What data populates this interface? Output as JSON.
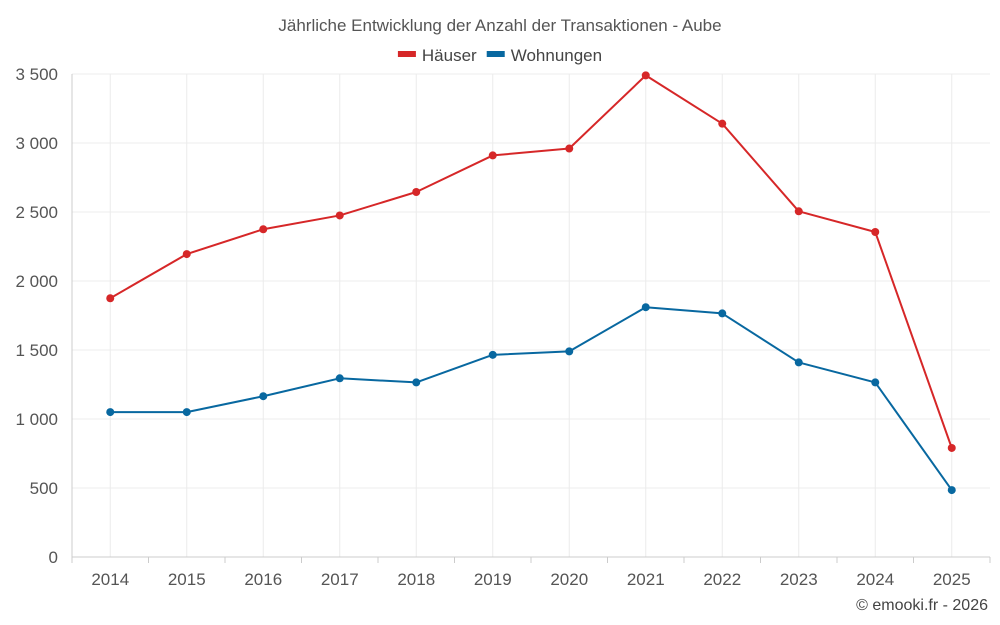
{
  "chart_data": {
    "type": "line",
    "title": "Jährliche Entwicklung der Anzahl der Transaktionen - Aube",
    "categories": [
      "2014",
      "2015",
      "2016",
      "2017",
      "2018",
      "2019",
      "2020",
      "2021",
      "2022",
      "2023",
      "2024",
      "2025"
    ],
    "series": [
      {
        "name": "Häuser",
        "color": "#d62728",
        "values": [
          1875,
          2195,
          2375,
          2475,
          2645,
          2910,
          2960,
          3490,
          3140,
          2505,
          2355,
          790
        ]
      },
      {
        "name": "Wohnungen",
        "color": "#0868a0",
        "values": [
          1050,
          1050,
          1165,
          1295,
          1265,
          1465,
          1490,
          1810,
          1765,
          1410,
          1265,
          485
        ]
      }
    ],
    "ylim": [
      0,
      3500
    ],
    "yticks": [
      0,
      500,
      1000,
      1500,
      2000,
      2500,
      3000,
      3500
    ],
    "ytick_labels": [
      "0",
      "500",
      "1 000",
      "1 500",
      "2 000",
      "2 500",
      "3 000",
      "3 500"
    ],
    "xlabel": "",
    "ylabel": "",
    "grid": true,
    "legend_position": "top-center"
  },
  "credit": "© emooki.fr - 2026"
}
